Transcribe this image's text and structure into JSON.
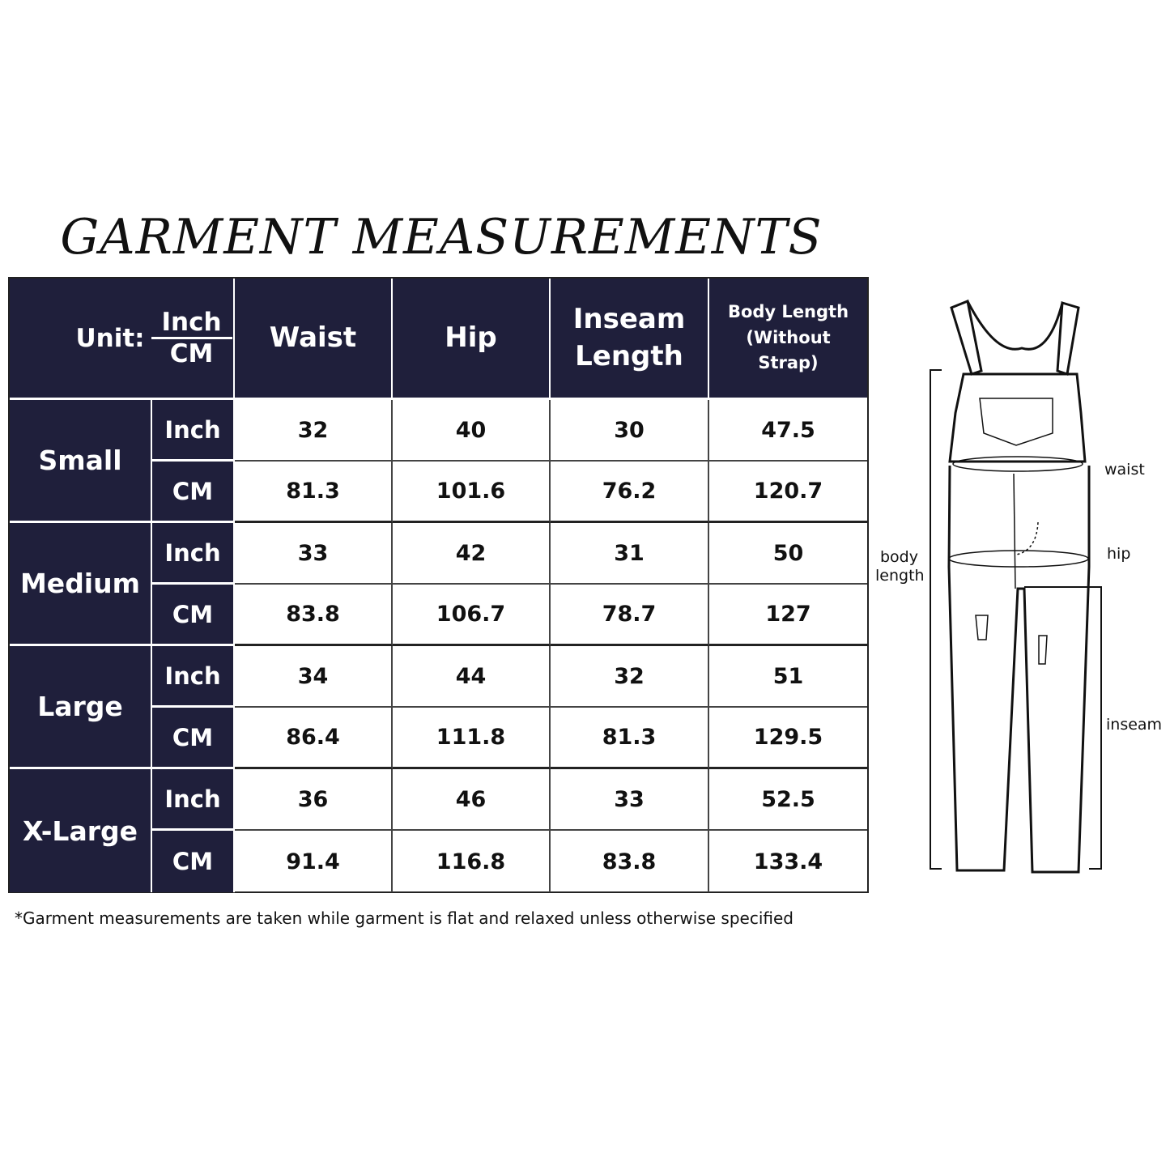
{
  "title": "GARMENT MEASUREMENTS",
  "header": {
    "unit_label": "Unit:",
    "unit_top": "Inch",
    "unit_bottom": "CM",
    "columns": [
      "Waist",
      "Hip",
      "Inseam Length",
      "Body Length (Without Strap)"
    ]
  },
  "colors": {
    "header_bg": "#1f1f3b",
    "header_text": "#ffffff"
  },
  "rows": [
    {
      "size": "Small",
      "inch": {
        "unit": "Inch",
        "values": [
          "32",
          "40",
          "30",
          "47.5"
        ]
      },
      "cm": {
        "unit": "CM",
        "values": [
          "81.3",
          "101.6",
          "76.2",
          "120.7"
        ]
      }
    },
    {
      "size": "Medium",
      "inch": {
        "unit": "Inch",
        "values": [
          "33",
          "42",
          "31",
          "50"
        ]
      },
      "cm": {
        "unit": "CM",
        "values": [
          "83.8",
          "106.7",
          "78.7",
          "127"
        ]
      }
    },
    {
      "size": "Large",
      "inch": {
        "unit": "Inch",
        "values": [
          "34",
          "44",
          "32",
          "51"
        ]
      },
      "cm": {
        "unit": "CM",
        "values": [
          "86.4",
          "111.8",
          "81.3",
          "129.5"
        ]
      }
    },
    {
      "size": "X-Large",
      "inch": {
        "unit": "Inch",
        "values": [
          "36",
          "46",
          "33",
          "52.5"
        ]
      },
      "cm": {
        "unit": "CM",
        "values": [
          "91.4",
          "116.8",
          "83.8",
          "133.4"
        ]
      }
    }
  ],
  "footnote": "*Garment measurements are taken while garment is flat and relaxed unless otherwise specified",
  "diagram": {
    "labels": {
      "waist": "waist",
      "hip": "hip",
      "body_length_1": "body",
      "body_length_2": "length",
      "inseam": "inseam"
    }
  }
}
